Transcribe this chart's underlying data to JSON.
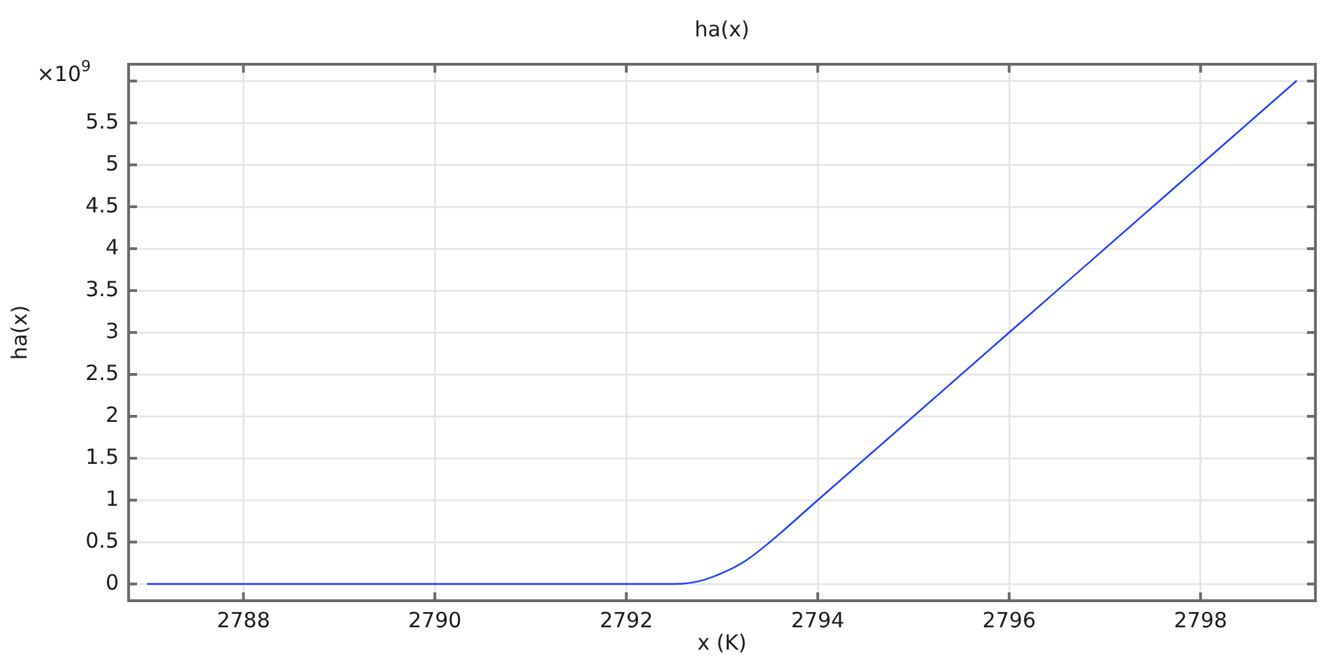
{
  "chart_data": {
    "type": "line",
    "title": "ha(x)",
    "xlabel": "x (K)",
    "ylabel": "ha(x)",
    "annotations": [
      "×10$^{9}$"
    ],
    "x": [
      2787,
      2792.5,
      2792.75,
      2793,
      2793.25,
      2793.5,
      2794,
      2796,
      2798,
      2799
    ],
    "series": [
      {
        "color": "#1f3cff",
        "values": [
          0,
          0,
          0.03,
          0.13,
          0.28,
          0.5,
          1,
          3,
          5,
          6
        ]
      }
    ],
    "xlim": [
      2786.8,
      2799.2
    ],
    "xticks": [
      2788,
      2790,
      2792,
      2794,
      2796,
      2798
    ],
    "ylim": [
      -0.2,
      6.2
    ],
    "yticks": [
      0,
      0.5,
      1,
      1.5,
      2,
      2.5,
      3,
      3.5,
      4,
      4.5,
      5,
      5.5,
      {
        "value": 6,
        "label": null
      }
    ],
    "grid": true
  }
}
